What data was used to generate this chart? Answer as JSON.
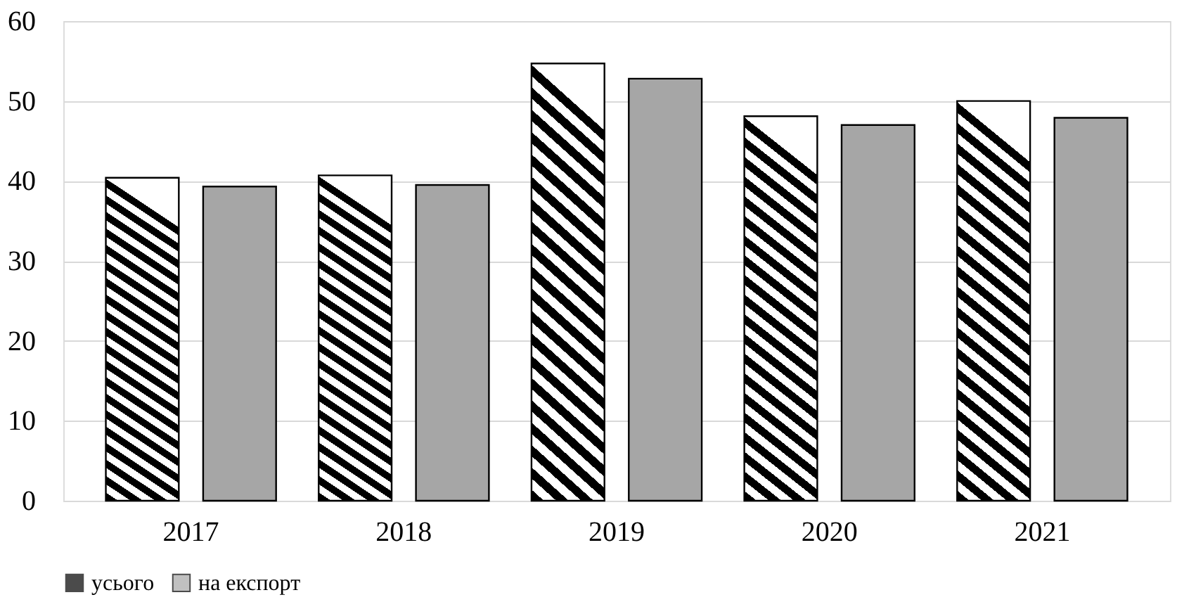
{
  "chart_data": {
    "type": "bar",
    "categories": [
      "2017",
      "2018",
      "2019",
      "2020",
      "2021"
    ],
    "series": [
      {
        "name": "усього",
        "color": "#000000",
        "values": [
          40.4,
          40.7,
          54.7,
          48.1,
          50.0
        ]
      },
      {
        "name": "на експорт",
        "color": "#a6a6a6",
        "values": [
          39.3,
          39.5,
          52.8,
          47.0,
          47.9
        ]
      }
    ],
    "ylim": [
      0,
      60
    ],
    "yticks": [
      0,
      10,
      20,
      30,
      40,
      50,
      60
    ],
    "grid": "y",
    "legend": "bottom"
  }
}
